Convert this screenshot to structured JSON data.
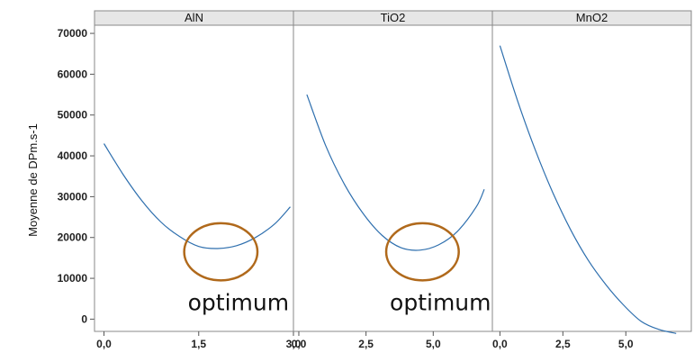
{
  "chart_data": {
    "type": "line",
    "ylabel": "Moyenne de DPm.s-1",
    "ylim": [
      -3000,
      72000
    ],
    "yticks": [
      0,
      10000,
      20000,
      30000,
      40000,
      50000,
      60000,
      70000
    ],
    "grid": false,
    "series_color": "#2e6fae",
    "annotation_color": "#b0691b",
    "panels": [
      {
        "title": "AlN",
        "xlim": [
          -0.15,
          3.0
        ],
        "xticks": [
          0.0,
          1.5,
          3.0
        ],
        "xtick_labels": [
          "0,0",
          "1,5",
          "3,0"
        ],
        "x": [
          0.0,
          0.3,
          0.6,
          0.9,
          1.2,
          1.5,
          1.8,
          2.1,
          2.4,
          2.7,
          2.95
        ],
        "y": [
          43000,
          35500,
          29000,
          23800,
          20200,
          17800,
          17300,
          18000,
          20000,
          23300,
          27500
        ],
        "annotation": {
          "label": "optimum",
          "x": 1.85,
          "y": 16500,
          "rx": 0.58,
          "ry": 7000
        }
      },
      {
        "title": "TiO2",
        "xlim": [
          -0.2,
          7.2
        ],
        "xticks": [
          0.0,
          2.5,
          5.0
        ],
        "xtick_labels": [
          "0,0",
          "2,5",
          "5,0"
        ],
        "x": [
          0.3,
          1.0,
          1.7,
          2.4,
          3.1,
          3.8,
          4.5,
          5.2,
          5.9,
          6.6,
          6.9
        ],
        "y": [
          55000,
          42500,
          33000,
          25800,
          20500,
          17500,
          16900,
          18200,
          21500,
          27500,
          31800
        ],
        "annotation": {
          "label": "optimum",
          "x": 4.6,
          "y": 16500,
          "rx": 1.35,
          "ry": 7000
        }
      },
      {
        "title": "MnO2",
        "xlim": [
          -0.3,
          7.6
        ],
        "xticks": [
          0.0,
          2.5,
          5.0
        ],
        "xtick_labels": [
          "0,0",
          "2,5",
          "5,0"
        ],
        "x": [
          0.0,
          0.7,
          1.4,
          2.1,
          2.8,
          3.5,
          4.2,
          4.9,
          5.6,
          6.3,
          7.0
        ],
        "y": [
          67000,
          53500,
          41500,
          31000,
          22000,
          14500,
          8500,
          3500,
          -500,
          -2500,
          -3500
        ],
        "annotation": null
      }
    ]
  }
}
